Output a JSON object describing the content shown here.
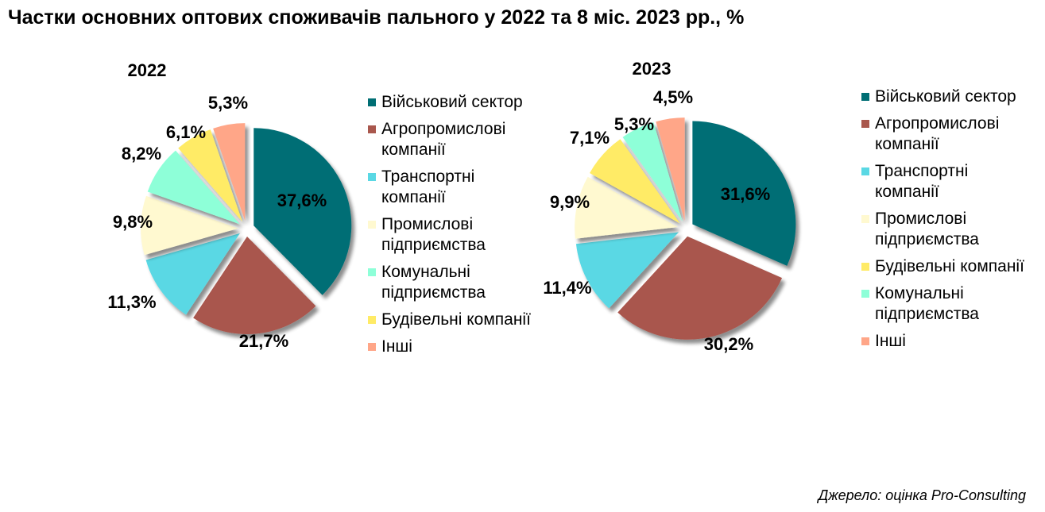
{
  "title": "Частки основних оптових споживачів пального у 2022 та 8 міс. 2023 рр.,  %",
  "source": "Джерело:  оцінка Pro-Consulting",
  "chart_data": [
    {
      "type": "pie",
      "title": "2022",
      "slices": [
        {
          "label": "Військовий сектор",
          "value": 37.6,
          "display": "37,6%",
          "color": "#006E74"
        },
        {
          "label": "Агропромислові компанії",
          "value": 21.7,
          "display": "21,7%",
          "color": "#A9574D"
        },
        {
          "label": "Транспортні компанії",
          "value": 11.3,
          "display": "11,3%",
          "color": "#5AD8E4"
        },
        {
          "label": "Промислові підприємства",
          "value": 9.8,
          "display": "9,8%",
          "color": "#FFF9D0"
        },
        {
          "label": "Комунальні підприємства",
          "value": 8.2,
          "display": "8,2%",
          "color": "#8EFFD8"
        },
        {
          "label": "Будівельні компанії",
          "value": 6.1,
          "display": "6,1%",
          "color": "#FFEB66"
        },
        {
          "label": "Інші",
          "value": 5.3,
          "display": "5,3%",
          "color": "#FFA688"
        }
      ],
      "legend": [
        "Військовий сектор",
        "Агропромислові компанії",
        "Транспортні компанії",
        "Промислові підприємства",
        "Комунальні підприємства",
        "Будівельні компанії",
        "Інші"
      ]
    },
    {
      "type": "pie",
      "title": "2023",
      "slices": [
        {
          "label": "Військовий сектор",
          "value": 31.6,
          "display": "31,6%",
          "color": "#006E74"
        },
        {
          "label": "Агропромислові компанії",
          "value": 30.2,
          "display": "30,2%",
          "color": "#A9574D"
        },
        {
          "label": "Транспортні компанії",
          "value": 11.4,
          "display": "11,4%",
          "color": "#5AD8E4"
        },
        {
          "label": "Промислові підприємства",
          "value": 9.9,
          "display": "9,9%",
          "color": "#FFF9D0"
        },
        {
          "label": "Будівельні компанії",
          "value": 7.1,
          "display": "7,1%",
          "color": "#FFEB66"
        },
        {
          "label": "Комунальні підприємства",
          "value": 5.3,
          "display": "5,3%",
          "color": "#8EFFD8"
        },
        {
          "label": "Інші",
          "value": 4.5,
          "display": "4,5%",
          "color": "#FFA688"
        }
      ],
      "legend": [
        "Військовий сектор",
        "Агропромислові компанії",
        "Транспортні компанії",
        "Промислові підприємства",
        "Будівельні компанії",
        "Комунальні підприємства",
        "Інші"
      ]
    }
  ]
}
